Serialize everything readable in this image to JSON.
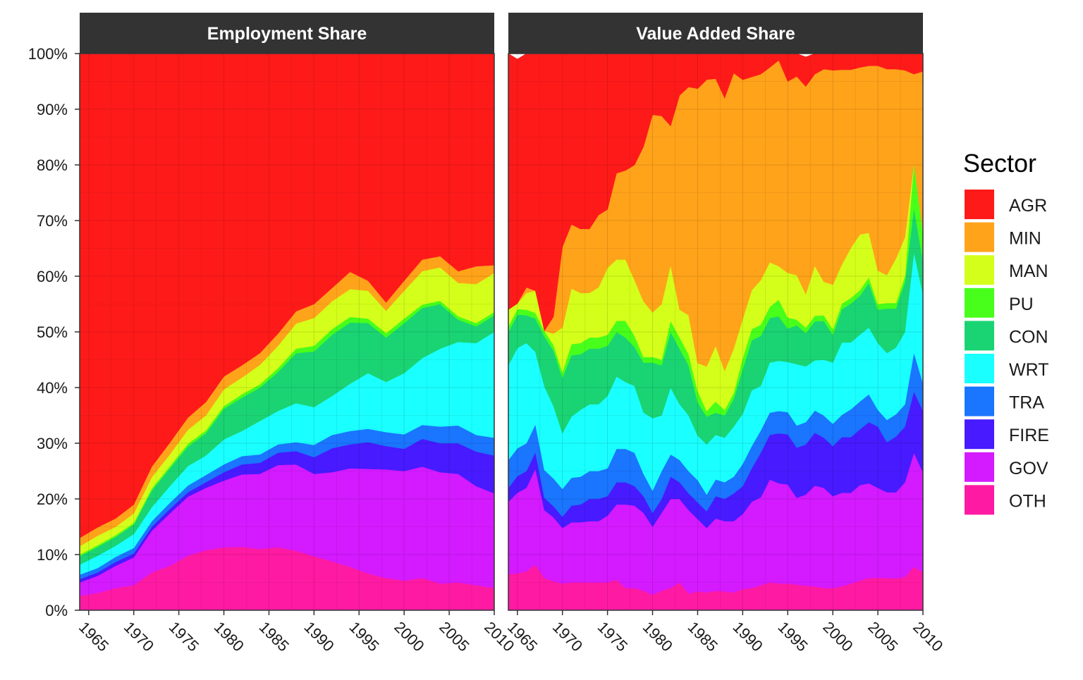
{
  "chart_data": [
    {
      "type": "area",
      "stacked": true,
      "title": "Employment Share",
      "xlabel": "",
      "ylabel": "",
      "xlim": [
        1964,
        2010
      ],
      "ylim": [
        0,
        1
      ],
      "x_ticks": [
        1965,
        1970,
        1975,
        1980,
        1985,
        1990,
        1995,
        2000,
        2005,
        2010
      ],
      "y_ticks": [
        "0%",
        "10%",
        "20%",
        "30%",
        "40%",
        "50%",
        "60%",
        "70%",
        "80%",
        "90%",
        "100%"
      ],
      "grid": true,
      "x": [
        1964,
        1966,
        1968,
        1970,
        1972,
        1974,
        1976,
        1978,
        1980,
        1982,
        1984,
        1986,
        1988,
        1990,
        1992,
        1994,
        1996,
        1998,
        2000,
        2002,
        2004,
        2006,
        2008,
        2010
      ],
      "series": [
        {
          "name": "OTH",
          "values": [
            0.026,
            0.031,
            0.04,
            0.045,
            0.068,
            0.08,
            0.098,
            0.108,
            0.113,
            0.114,
            0.11,
            0.113,
            0.107,
            0.097,
            0.088,
            0.078,
            0.066,
            0.058,
            0.053,
            0.058,
            0.048,
            0.05,
            0.045,
            0.04
          ]
        },
        {
          "name": "GOV",
          "values": [
            0.024,
            0.031,
            0.04,
            0.05,
            0.075,
            0.094,
            0.106,
            0.112,
            0.12,
            0.13,
            0.135,
            0.148,
            0.155,
            0.148,
            0.16,
            0.177,
            0.188,
            0.195,
            0.197,
            0.2,
            0.2,
            0.195,
            0.178,
            0.17
          ]
        },
        {
          "name": "FIRE",
          "values": [
            0.006,
            0.006,
            0.007,
            0.007,
            0.007,
            0.008,
            0.008,
            0.01,
            0.015,
            0.018,
            0.02,
            0.022,
            0.024,
            0.03,
            0.043,
            0.043,
            0.048,
            0.042,
            0.04,
            0.05,
            0.052,
            0.055,
            0.062,
            0.068
          ]
        },
        {
          "name": "TRA",
          "values": [
            0.008,
            0.008,
            0.009,
            0.01,
            0.01,
            0.011,
            0.012,
            0.013,
            0.014,
            0.015,
            0.015,
            0.015,
            0.016,
            0.022,
            0.024,
            0.024,
            0.024,
            0.025,
            0.026,
            0.025,
            0.03,
            0.032,
            0.03,
            0.032
          ]
        },
        {
          "name": "WRT",
          "values": [
            0.018,
            0.022,
            0.02,
            0.025,
            0.025,
            0.03,
            0.035,
            0.035,
            0.045,
            0.045,
            0.06,
            0.06,
            0.07,
            0.068,
            0.07,
            0.085,
            0.1,
            0.09,
            0.11,
            0.12,
            0.14,
            0.15,
            0.165,
            0.19
          ]
        },
        {
          "name": "CON",
          "values": [
            0.015,
            0.016,
            0.016,
            0.017,
            0.03,
            0.032,
            0.035,
            0.04,
            0.055,
            0.06,
            0.06,
            0.07,
            0.09,
            0.1,
            0.11,
            0.11,
            0.09,
            0.08,
            0.09,
            0.09,
            0.08,
            0.04,
            0.03,
            0.03
          ]
        },
        {
          "name": "PU",
          "values": [
            0.003,
            0.003,
            0.003,
            0.003,
            0.004,
            0.004,
            0.005,
            0.005,
            0.005,
            0.006,
            0.006,
            0.007,
            0.008,
            0.01,
            0.01,
            0.01,
            0.008,
            0.008,
            0.008,
            0.006,
            0.006,
            0.006,
            0.006,
            0.006
          ]
        },
        {
          "name": "MAN",
          "values": [
            0.015,
            0.017,
            0.015,
            0.017,
            0.02,
            0.021,
            0.025,
            0.027,
            0.03,
            0.03,
            0.035,
            0.04,
            0.045,
            0.05,
            0.05,
            0.05,
            0.05,
            0.04,
            0.05,
            0.06,
            0.06,
            0.06,
            0.07,
            0.07
          ]
        },
        {
          "name": "MIN",
          "values": [
            0.015,
            0.015,
            0.015,
            0.016,
            0.019,
            0.021,
            0.022,
            0.024,
            0.023,
            0.022,
            0.021,
            0.022,
            0.022,
            0.025,
            0.024,
            0.031,
            0.018,
            0.015,
            0.018,
            0.021,
            0.02,
            0.021,
            0.032,
            0.014
          ]
        },
        {
          "name": "AGR",
          "values": [
            0.87,
            0.851,
            0.835,
            0.81,
            0.742,
            0.699,
            0.654,
            0.626,
            0.58,
            0.56,
            0.538,
            0.503,
            0.463,
            0.45,
            0.421,
            0.392,
            0.408,
            0.447,
            0.408,
            0.37,
            0.364,
            0.391,
            0.382,
            0.38
          ]
        }
      ]
    },
    {
      "type": "area",
      "stacked": true,
      "title": "Value Added Share",
      "xlabel": "",
      "ylabel": "",
      "xlim": [
        1964,
        2010
      ],
      "ylim": [
        0,
        1
      ],
      "x_ticks": [
        1965,
        1970,
        1975,
        1980,
        1985,
        1990,
        1995,
        2000,
        2005,
        2010
      ],
      "grid": true,
      "x": [
        1964,
        1965,
        1966,
        1967,
        1968,
        1969,
        1970,
        1971,
        1972,
        1973,
        1974,
        1975,
        1976,
        1977,
        1978,
        1979,
        1980,
        1981,
        1982,
        1983,
        1984,
        1985,
        1986,
        1987,
        1988,
        1989,
        1990,
        1991,
        1992,
        1993,
        1994,
        1995,
        1996,
        1997,
        1998,
        1999,
        2000,
        2001,
        2002,
        2003,
        2004,
        2005,
        2006,
        2007,
        2008,
        2009,
        2010
      ],
      "series": [
        {
          "name": "OTH",
          "values": [
            0.065,
            0.066,
            0.07,
            0.082,
            0.058,
            0.052,
            0.048,
            0.05,
            0.05,
            0.05,
            0.05,
            0.05,
            0.055,
            0.04,
            0.04,
            0.035,
            0.028,
            0.035,
            0.04,
            0.05,
            0.03,
            0.034,
            0.032,
            0.035,
            0.034,
            0.032,
            0.038,
            0.04,
            0.045,
            0.05,
            0.048,
            0.048,
            0.046,
            0.044,
            0.043,
            0.04,
            0.04,
            0.043,
            0.048,
            0.053,
            0.058,
            0.058,
            0.058,
            0.057,
            0.06,
            0.078,
            0.068
          ]
        },
        {
          "name": "GOV",
          "values": [
            0.13,
            0.145,
            0.15,
            0.172,
            0.122,
            0.115,
            0.1,
            0.108,
            0.108,
            0.11,
            0.11,
            0.12,
            0.135,
            0.15,
            0.148,
            0.14,
            0.122,
            0.14,
            0.16,
            0.15,
            0.15,
            0.13,
            0.116,
            0.13,
            0.126,
            0.128,
            0.135,
            0.155,
            0.158,
            0.185,
            0.18,
            0.178,
            0.156,
            0.164,
            0.181,
            0.18,
            0.165,
            0.168,
            0.163,
            0.172,
            0.17,
            0.162,
            0.154,
            0.155,
            0.17,
            0.205,
            0.18
          ]
        },
        {
          "name": "FIRE",
          "values": [
            0.025,
            0.03,
            0.03,
            0.03,
            0.022,
            0.02,
            0.02,
            0.03,
            0.032,
            0.04,
            0.04,
            0.035,
            0.04,
            0.04,
            0.035,
            0.03,
            0.025,
            0.025,
            0.04,
            0.03,
            0.03,
            0.03,
            0.03,
            0.04,
            0.04,
            0.05,
            0.05,
            0.06,
            0.08,
            0.08,
            0.09,
            0.09,
            0.09,
            0.09,
            0.095,
            0.09,
            0.09,
            0.1,
            0.1,
            0.1,
            0.11,
            0.11,
            0.09,
            0.1,
            0.1,
            0.11,
            0.11
          ]
        },
        {
          "name": "TRA",
          "values": [
            0.05,
            0.05,
            0.05,
            0.05,
            0.05,
            0.05,
            0.05,
            0.05,
            0.05,
            0.05,
            0.05,
            0.05,
            0.06,
            0.06,
            0.06,
            0.04,
            0.04,
            0.05,
            0.04,
            0.04,
            0.04,
            0.04,
            0.03,
            0.03,
            0.03,
            0.03,
            0.04,
            0.04,
            0.04,
            0.04,
            0.04,
            0.04,
            0.04,
            0.04,
            0.04,
            0.04,
            0.04,
            0.04,
            0.05,
            0.05,
            0.05,
            0.03,
            0.04,
            0.04,
            0.04,
            0.07,
            0.05
          ]
        },
        {
          "name": "WRT",
          "values": [
            0.17,
            0.18,
            0.18,
            0.13,
            0.15,
            0.13,
            0.1,
            0.11,
            0.12,
            0.12,
            0.12,
            0.13,
            0.13,
            0.12,
            0.12,
            0.11,
            0.13,
            0.1,
            0.12,
            0.1,
            0.1,
            0.08,
            0.09,
            0.08,
            0.08,
            0.09,
            0.09,
            0.1,
            0.08,
            0.09,
            0.09,
            0.09,
            0.11,
            0.1,
            0.09,
            0.1,
            0.11,
            0.13,
            0.12,
            0.12,
            0.12,
            0.12,
            0.12,
            0.12,
            0.13,
            0.18,
            0.16
          ]
        },
        {
          "name": "CON",
          "values": [
            0.06,
            0.06,
            0.05,
            0.06,
            0.09,
            0.1,
            0.1,
            0.11,
            0.1,
            0.1,
            0.1,
            0.09,
            0.08,
            0.08,
            0.07,
            0.09,
            0.1,
            0.09,
            0.1,
            0.1,
            0.09,
            0.06,
            0.05,
            0.04,
            0.04,
            0.05,
            0.08,
            0.09,
            0.09,
            0.08,
            0.08,
            0.06,
            0.07,
            0.06,
            0.07,
            0.07,
            0.05,
            0.06,
            0.07,
            0.07,
            0.08,
            0.06,
            0.08,
            0.07,
            0.09,
            0.08,
            0.06
          ]
        },
        {
          "name": "PU",
          "values": [
            0.01,
            0.01,
            0.01,
            0.01,
            0.01,
            0.01,
            0.01,
            0.02,
            0.02,
            0.02,
            0.02,
            0.02,
            0.02,
            0.03,
            0.02,
            0.01,
            0.01,
            0.01,
            0.02,
            0.02,
            0.02,
            0.02,
            0.01,
            0.02,
            0.01,
            0.01,
            0.02,
            0.02,
            0.02,
            0.02,
            0.03,
            0.02,
            0.01,
            0.01,
            0.01,
            0.01,
            0.01,
            0.01,
            0.01,
            0.01,
            0.01,
            0.01,
            0.01,
            0.01,
            0.01,
            0.08,
            0.05
          ]
        },
        {
          "name": "MAN",
          "values": [
            0.03,
            0.01,
            0.03,
            0.04,
            0.0,
            0.02,
            0.08,
            0.1,
            0.09,
            0.08,
            0.09,
            0.12,
            0.11,
            0.11,
            0.1,
            0.1,
            0.08,
            0.1,
            0.1,
            0.05,
            0.07,
            0.05,
            0.08,
            0.1,
            0.07,
            0.08,
            0.07,
            0.07,
            0.08,
            0.08,
            0.06,
            0.08,
            0.08,
            0.06,
            0.09,
            0.06,
            0.08,
            0.07,
            0.09,
            0.1,
            0.08,
            0.06,
            0.05,
            0.08,
            0.07,
            0.0,
            0.0
          ]
        },
        {
          "name": "MIN",
          "values": [
            0.0,
            0.0,
            0.01,
            0.0,
            0.0,
            0.03,
            0.145,
            0.115,
            0.115,
            0.115,
            0.13,
            0.105,
            0.155,
            0.16,
            0.207,
            0.278,
            0.355,
            0.338,
            0.25,
            0.385,
            0.41,
            0.493,
            0.515,
            0.48,
            0.49,
            0.495,
            0.43,
            0.383,
            0.37,
            0.35,
            0.37,
            0.344,
            0.357,
            0.373,
            0.344,
            0.382,
            0.385,
            0.35,
            0.32,
            0.3,
            0.3,
            0.368,
            0.37,
            0.34,
            0.3,
            0.16,
            0.29
          ]
        },
        {
          "name": "AGR",
          "values": [
            0.46,
            0.439,
            0.42,
            0.426,
            0.498,
            0.473,
            0.347,
            0.307,
            0.315,
            0.315,
            0.29,
            0.28,
            0.215,
            0.21,
            0.2,
            0.167,
            0.11,
            0.112,
            0.13,
            0.075,
            0.06,
            0.063,
            0.047,
            0.045,
            0.08,
            0.035,
            0.047,
            0.042,
            0.037,
            0.035,
            0.022,
            0.05,
            0.041,
            0.053,
            0.037,
            0.028,
            0.03,
            0.029,
            0.03,
            0.025,
            0.022,
            0.022,
            0.028,
            0.028,
            0.03,
            0.037,
            0.032
          ]
        }
      ]
    }
  ],
  "legend": {
    "title": "Sector",
    "placement": "right",
    "items": [
      {
        "label": "AGR",
        "color": "#ff1a1a"
      },
      {
        "label": "MIN",
        "color": "#ffa31a"
      },
      {
        "label": "MAN",
        "color": "#d4ff1a"
      },
      {
        "label": "PU",
        "color": "#47ff1a"
      },
      {
        "label": "CON",
        "color": "#1ad473"
      },
      {
        "label": "WRT",
        "color": "#1affff"
      },
      {
        "label": "TRA",
        "color": "#1a75ff"
      },
      {
        "label": "FIRE",
        "color": "#471aff"
      },
      {
        "label": "GOV",
        "color": "#d41aff"
      },
      {
        "label": "OTH",
        "color": "#ff1aa3"
      }
    ]
  },
  "strip_color": "#333333",
  "grid_color": "#e6e6e6"
}
